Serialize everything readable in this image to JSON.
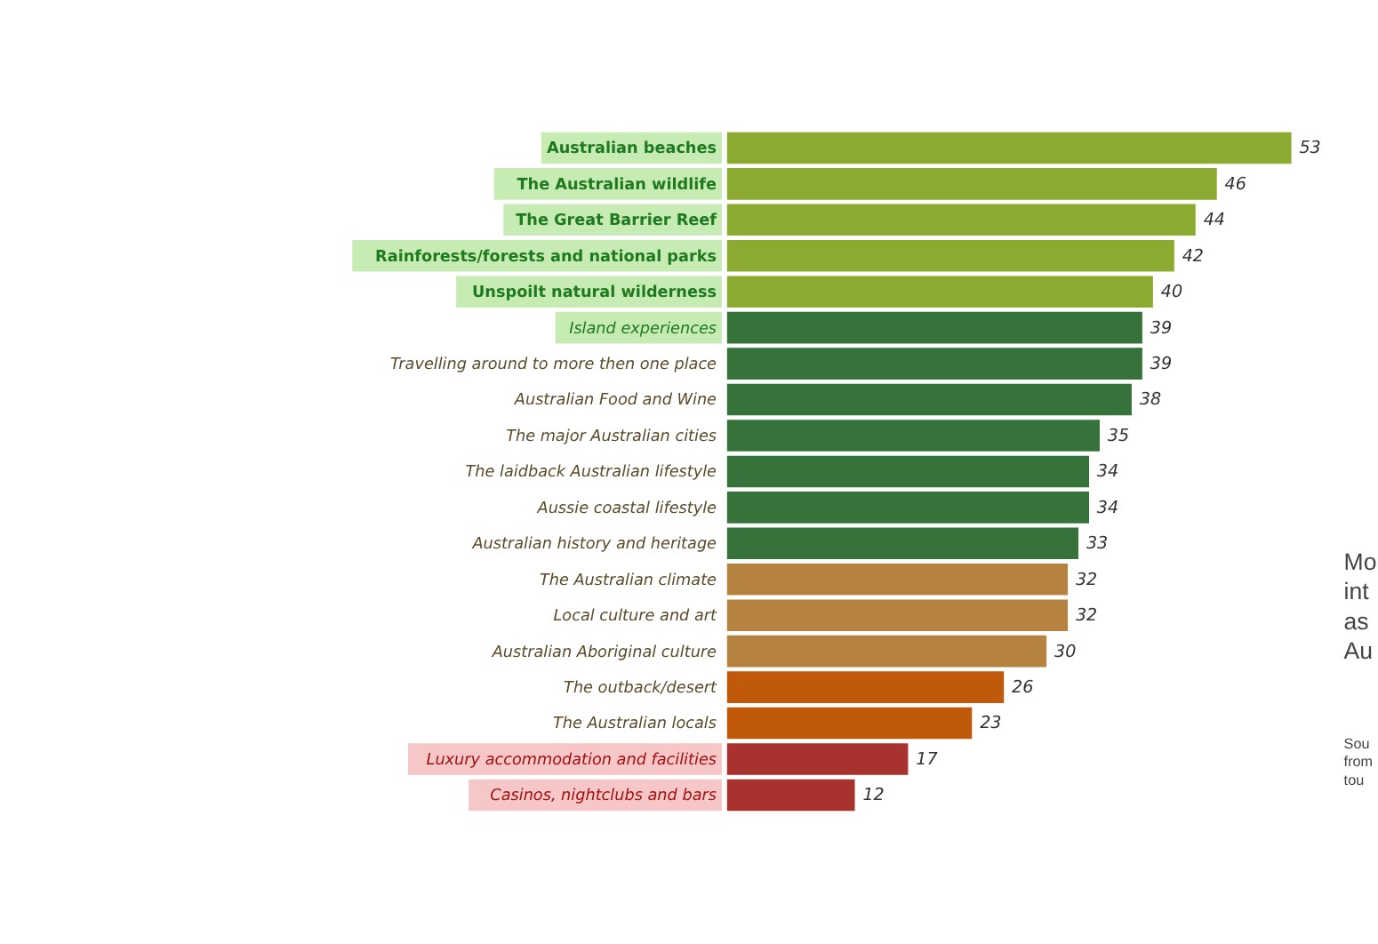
{
  "chart_data": {
    "type": "bar",
    "orientation": "horizontal",
    "data_labels": true,
    "categories": [
      "Australian beaches",
      "The Australian wildlife",
      "The Great Barrier Reef",
      "Rainforests/forests and national parks",
      "Unspoilt natural wilderness",
      "Island experiences",
      "Travelling around to more then one place",
      "Australian Food and Wine",
      "The major Australian cities",
      "The laidback Australian lifestyle",
      "Aussie coastal lifestyle",
      "Australian history and heritage",
      "The Australian climate",
      "Local culture and art",
      "Australian Aboriginal culture",
      "The outback/desert",
      "The Australian locals",
      "Luxury accommodation and facilities",
      "Casinos, nightclubs and bars"
    ],
    "values": [
      53,
      46,
      44,
      42,
      40,
      39,
      39,
      38,
      35,
      34,
      34,
      33,
      32,
      32,
      30,
      26,
      23,
      17,
      12
    ],
    "colors": [
      "#8aab2f",
      "#8aab2f",
      "#8aab2f",
      "#8aab2f",
      "#8aab2f",
      "#36733a",
      "#36733a",
      "#36733a",
      "#36733a",
      "#36733a",
      "#36733a",
      "#36733a",
      "#b5823f",
      "#b5823f",
      "#b5823f",
      "#c05a0a",
      "#c05a0a",
      "#a8322d",
      "#a8322d"
    ],
    "xlim": [
      0,
      53
    ],
    "annotations": [
      "Mo\nint\nas\nAu",
      "Sou\nfrom\ntou"
    ]
  }
}
